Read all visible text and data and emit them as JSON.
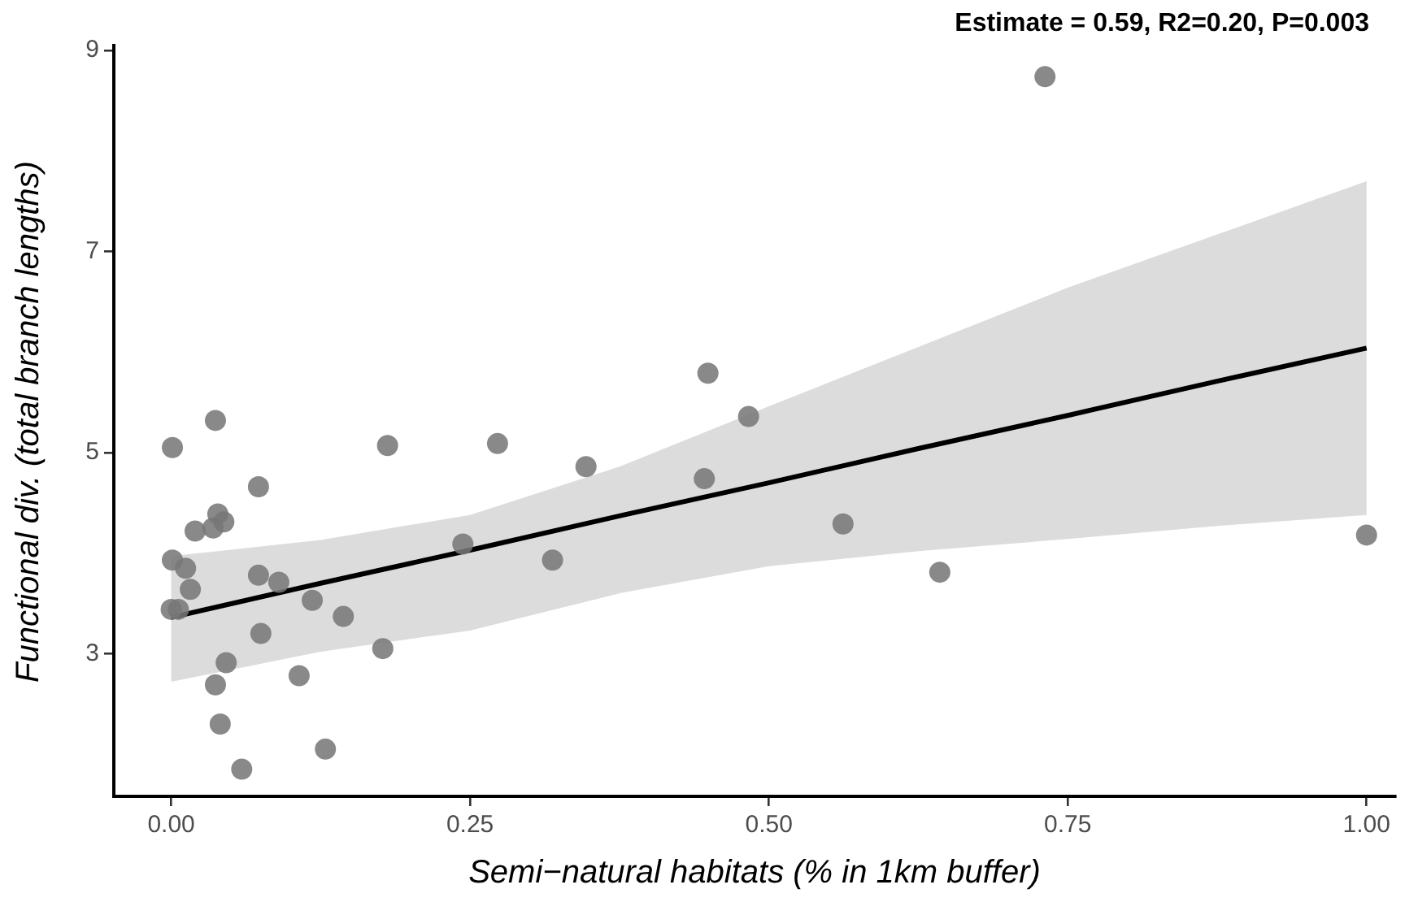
{
  "chart_data": {
    "type": "scatter",
    "xlabel": "Semi−natural habitats (% in 1km buffer)",
    "ylabel": "Functional div. (total branch lengths)",
    "annotations": [
      "Estimate = 0.59, R2=0.20, P=0.003"
    ],
    "xlim": [
      -0.048,
      1.024
    ],
    "ylim": [
      1.58,
      9.05
    ],
    "xticks": [
      {
        "value": 0,
        "label": "0.00"
      },
      {
        "value": 0.25,
        "label": "0.25"
      },
      {
        "value": 0.5,
        "label": "0.50"
      },
      {
        "value": 0.75,
        "label": "0.75"
      },
      {
        "value": 1,
        "label": "1.00"
      }
    ],
    "yticks": [
      3,
      5,
      7,
      9
    ],
    "grid": false,
    "legend": false,
    "series": [
      {
        "marker": "circle",
        "color": "#777777",
        "x": [
          0.001,
          0.037,
          0.073,
          0.181,
          0.02,
          0.035,
          0.039,
          0.044,
          0.001,
          0.012,
          0.016,
          0.0,
          0.006,
          0.073,
          0.09,
          0.118,
          0.144,
          0.075,
          0.177,
          0.046,
          0.107,
          0.037,
          0.041,
          0.129,
          0.059,
          0.273,
          0.347,
          0.449,
          0.483,
          0.446,
          0.562,
          0.244,
          0.319,
          0.731,
          0.643,
          1.0
        ],
        "values": [
          5.05,
          5.32,
          4.66,
          5.07,
          4.22,
          4.25,
          4.39,
          4.31,
          3.93,
          3.85,
          3.64,
          3.44,
          3.44,
          3.78,
          3.71,
          3.53,
          3.37,
          3.2,
          3.05,
          2.91,
          2.78,
          2.69,
          2.3,
          2.05,
          1.85,
          5.09,
          4.86,
          5.79,
          5.36,
          4.74,
          4.29,
          4.09,
          3.93,
          8.74,
          3.81,
          4.18
        ]
      },
      {
        "type": "line",
        "color": "#000000",
        "x": [
          0,
          0.125,
          0.25,
          0.375,
          0.5,
          0.625,
          0.75,
          0.875,
          1
        ],
        "values": [
          3.36,
          3.7,
          4.03,
          4.37,
          4.7,
          5.04,
          5.37,
          5.71,
          6.04
        ],
        "lower": [
          2.72,
          3.02,
          3.23,
          3.6,
          3.87,
          4.02,
          4.14,
          4.27,
          4.38
        ],
        "upper": [
          3.97,
          4.13,
          4.38,
          4.86,
          5.46,
          6.05,
          6.64,
          7.17,
          7.7
        ]
      }
    ]
  }
}
